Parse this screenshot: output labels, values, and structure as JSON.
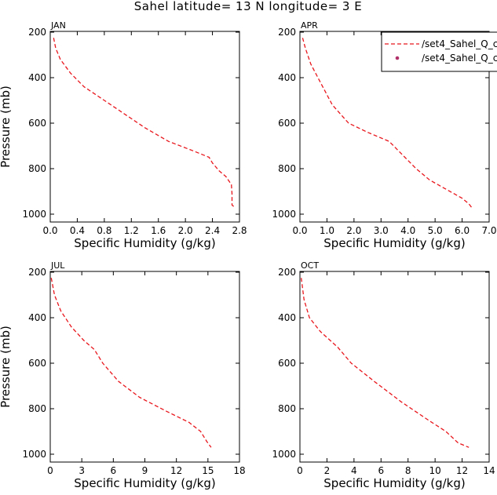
{
  "title": "Sahel  latitude= 13 N longitude= 3 E",
  "legend": {
    "line_label": "/set4_Sahel_Q_c",
    "marker_label": "/set4_Sahel_Q_c",
    "line_color": "#e8161c",
    "marker_color": "#b0306a"
  },
  "chart_data": [
    {
      "type": "line",
      "title": "JAN",
      "xlabel": "Specific Humidity (g/kg)",
      "ylabel": "Pressure (mb)",
      "xlim": [
        0,
        2.8
      ],
      "ylim": [
        200,
        1000
      ],
      "xticks": [
        0,
        0.4,
        0.8,
        1.2,
        1.6,
        2.0,
        2.4,
        2.8
      ],
      "xtick_labels": [
        "0.0",
        "0.4",
        "0.8",
        "1.2",
        "1.6",
        "2.0",
        "2.4",
        "2.8"
      ],
      "yticks": [
        200,
        400,
        600,
        800,
        1000
      ],
      "ytick_labels": [
        "200",
        "400",
        "600",
        "800",
        "1000"
      ],
      "series": [
        {
          "name": "/set4_Sahel_Q_c",
          "x": [
            0.05,
            0.08,
            0.15,
            0.3,
            0.5,
            0.8,
            1.1,
            1.4,
            1.75,
            2.1,
            2.35,
            2.4,
            2.5,
            2.6,
            2.68,
            2.69,
            2.69,
            2.73
          ],
          "y": [
            225,
            270,
            320,
            380,
            440,
            500,
            560,
            620,
            680,
            720,
            750,
            775,
            810,
            835,
            870,
            910,
            960,
            970
          ]
        }
      ]
    },
    {
      "type": "line",
      "title": "APR",
      "xlabel": "Specific Humidity (g/kg)",
      "ylabel": "",
      "xlim": [
        0,
        7
      ],
      "ylim": [
        200,
        1000
      ],
      "xticks": [
        0,
        1,
        2,
        3,
        4,
        5,
        6,
        7
      ],
      "xtick_labels": [
        "0.0",
        "1.0",
        "2.0",
        "3.0",
        "4.0",
        "5.0",
        "6.0",
        "7.0"
      ],
      "yticks": [
        200,
        400,
        600,
        800,
        1000
      ],
      "ytick_labels": [
        "200",
        "400",
        "600",
        "800",
        "1000"
      ],
      "series": [
        {
          "name": "/set4_Sahel_Q_c",
          "x": [
            0.1,
            0.2,
            0.4,
            0.8,
            1.2,
            1.8,
            2.5,
            3.3,
            3.8,
            4.3,
            4.8,
            5.4,
            6.0,
            6.25,
            6.35
          ],
          "y": [
            225,
            270,
            340,
            430,
            520,
            600,
            640,
            680,
            740,
            800,
            850,
            890,
            930,
            955,
            970
          ]
        }
      ]
    },
    {
      "type": "line",
      "title": "JUL",
      "xlabel": "Specific Humidity (g/kg)",
      "ylabel": "Pressure (mb)",
      "xlim": [
        0,
        18
      ],
      "ylim": [
        200,
        1000
      ],
      "xticks": [
        0,
        3,
        6,
        9,
        12,
        15,
        18
      ],
      "xtick_labels": [
        "0",
        "3",
        "6",
        "9",
        "12",
        "15",
        "18"
      ],
      "yticks": [
        200,
        400,
        600,
        800,
        1000
      ],
      "ytick_labels": [
        "200",
        "400",
        "600",
        "800",
        "1000"
      ],
      "series": [
        {
          "name": "/set4_Sahel_Q_c",
          "x": [
            0.1,
            0.4,
            1.0,
            2.0,
            3.2,
            4.2,
            5.0,
            6.5,
            8.5,
            11.0,
            13.2,
            14.3,
            14.9,
            15.3
          ],
          "y": [
            225,
            300,
            370,
            440,
            500,
            540,
            600,
            680,
            750,
            810,
            860,
            900,
            945,
            970
          ]
        }
      ]
    },
    {
      "type": "line",
      "title": "OCT",
      "xlabel": "Specific Humidity (g/kg)",
      "ylabel": "",
      "xlim": [
        0,
        14
      ],
      "ylim": [
        200,
        1000
      ],
      "xticks": [
        0,
        2,
        4,
        6,
        8,
        10,
        12,
        14
      ],
      "xtick_labels": [
        "0",
        "2",
        "4",
        "6",
        "8",
        "10",
        "12",
        "14"
      ],
      "yticks": [
        200,
        400,
        600,
        800,
        1000
      ],
      "ytick_labels": [
        "200",
        "400",
        "600",
        "800",
        "1000"
      ],
      "series": [
        {
          "name": "/set4_Sahel_Q_c",
          "x": [
            0.1,
            0.3,
            0.7,
            1.5,
            2.8,
            3.8,
            5.5,
            7.5,
            9.5,
            10.8,
            11.7,
            12.5
          ],
          "y": [
            225,
            320,
            400,
            460,
            530,
            600,
            680,
            770,
            850,
            900,
            950,
            970
          ]
        }
      ]
    }
  ]
}
